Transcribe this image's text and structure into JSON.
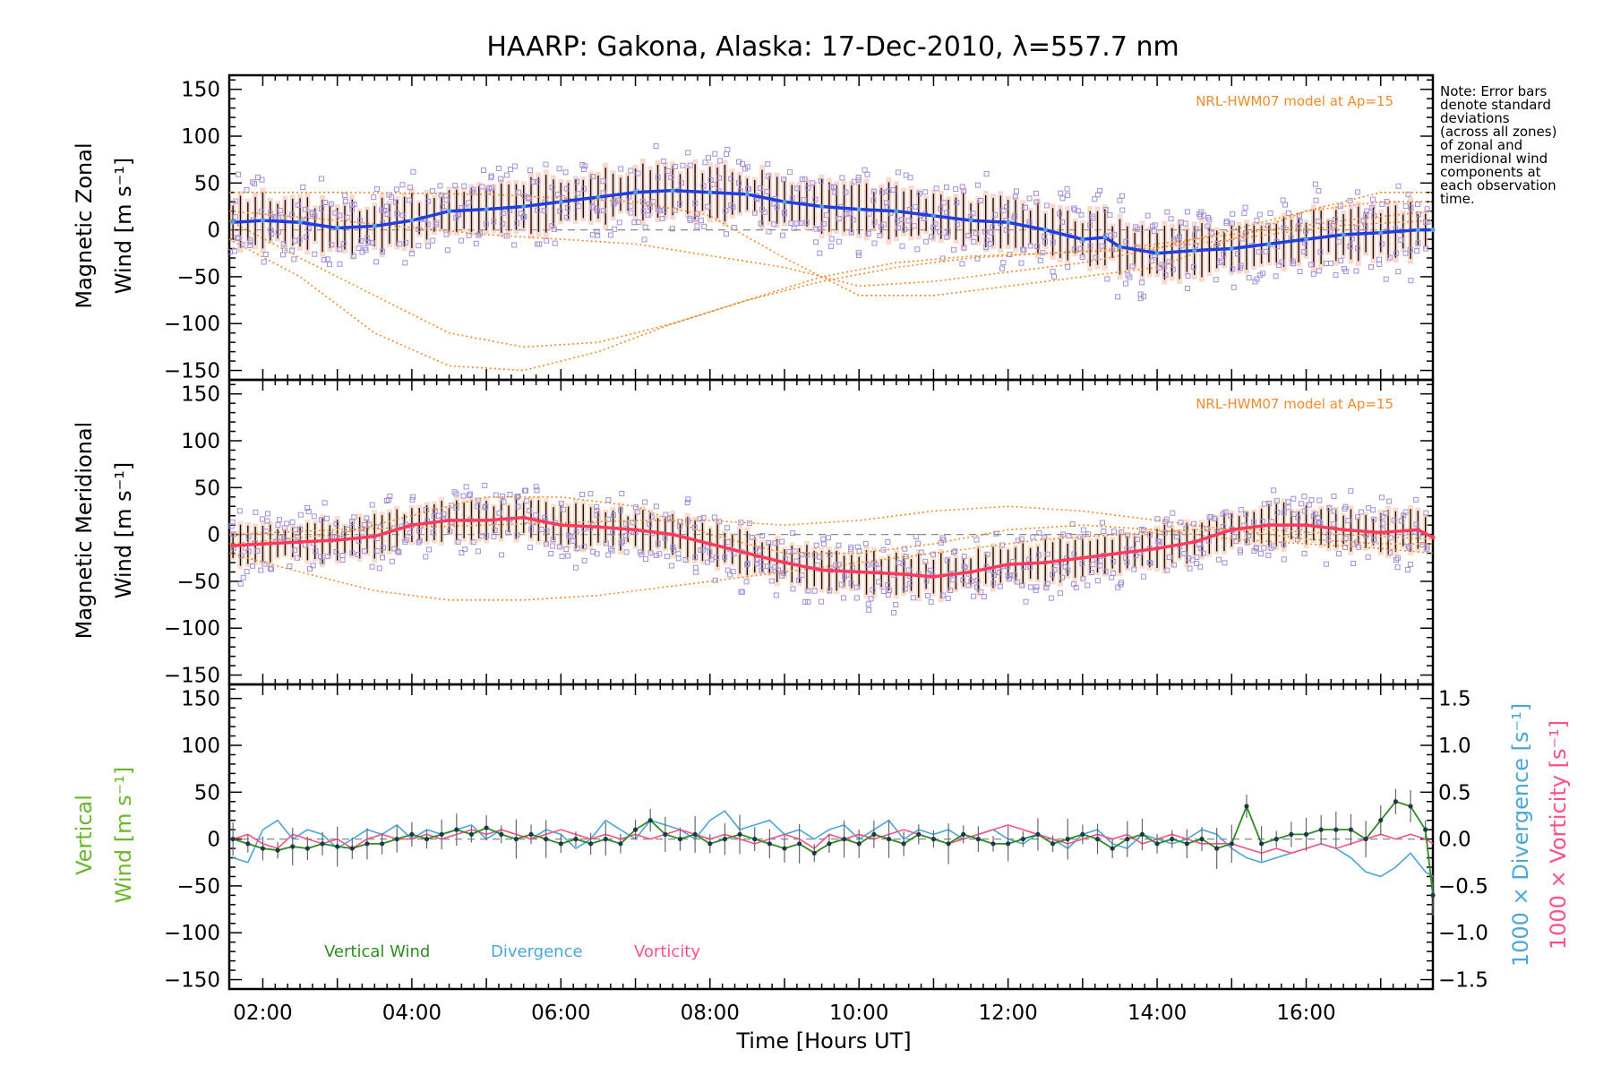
{
  "title": "HAARP: Gakona,  Alaska: 17-Dec-2010, λ=557.7 nm",
  "note": [
    "Note: Error bars",
    "denote standard",
    "deviations",
    "(across all zones)",
    "of zonal and",
    "meridional wind",
    "components at",
    "each observation",
    "time."
  ],
  "colors": {
    "zonal": "#1f3fe0",
    "zonal_light": "#4fa0e0",
    "meridional": "#ff3a5c",
    "vertical": "#2e8b22",
    "vertical_label": "#6ab82a",
    "divergence": "#4aa6d8",
    "vorticity": "#ff4f86",
    "model": "#f08a2c",
    "scatter": "#a08fd8",
    "zonal_bands": "#f4b8a8",
    "meridional_bands": "#f6c0a0"
  },
  "chart_data": [
    {
      "type": "line",
      "panel": "zonal",
      "ylabel": [
        "Magnetic Zonal",
        "Wind [m s⁻¹]"
      ],
      "model_label": "NRL-HWM07 model at Ap=15",
      "ylim": [
        -160,
        165
      ],
      "yticks": [
        "150",
        "100",
        "50",
        "0",
        "−50",
        "−100",
        "−150"
      ],
      "ytick_values": [
        150,
        100,
        50,
        0,
        -50,
        -100,
        -150
      ],
      "xlim": [
        1.55,
        17.7
      ],
      "x": [
        1.6,
        2.0,
        2.5,
        3.0,
        3.5,
        4.0,
        4.5,
        5.0,
        5.5,
        6.0,
        6.5,
        7.0,
        7.5,
        8.0,
        8.5,
        9.0,
        9.5,
        10.0,
        10.5,
        11.0,
        11.5,
        12.0,
        12.5,
        13.0,
        13.3,
        13.5,
        14.0,
        14.5,
        15.0,
        15.5,
        16.0,
        16.5,
        17.0,
        17.5,
        17.7
      ],
      "y": [
        8,
        10,
        8,
        2,
        4,
        10,
        20,
        22,
        25,
        30,
        35,
        40,
        42,
        40,
        38,
        30,
        25,
        22,
        20,
        15,
        10,
        8,
        0,
        -10,
        -8,
        -18,
        -25,
        -22,
        -20,
        -15,
        -10,
        -5,
        -3,
        0,
        0
      ],
      "model_curves": [
        {
          "x": [
            1.55,
            2.5,
            3.5,
            4.5,
            5.5,
            6.5,
            7.5,
            8.5,
            9.5,
            10.5,
            11.5,
            12.5,
            13.5,
            14.5,
            15.5,
            16.5,
            17.7
          ],
          "y": [
            10,
            -30,
            -70,
            -110,
            -125,
            -120,
            -100,
            -75,
            -55,
            -40,
            -30,
            -25,
            -22,
            -15,
            -5,
            5,
            10
          ]
        },
        {
          "x": [
            1.55,
            2.5,
            3.5,
            4.5,
            5.5,
            6.5,
            7.5,
            8.5,
            9.5,
            10.5,
            11.5,
            12.5,
            13.5,
            14.5,
            15.5,
            16.5,
            17.7
          ],
          "y": [
            -10,
            -50,
            -110,
            -145,
            -150,
            -130,
            -100,
            -75,
            -50,
            -35,
            -28,
            -25,
            -20,
            -10,
            0,
            10,
            20
          ]
        },
        {
          "x": [
            1.55,
            3,
            5,
            7,
            8,
            9,
            10,
            11,
            12,
            13,
            14,
            15,
            16,
            17,
            17.7
          ],
          "y": [
            40,
            40,
            38,
            30,
            15,
            -30,
            -70,
            -70,
            -60,
            -50,
            -40,
            -10,
            20,
            40,
            40
          ]
        },
        {
          "x": [
            1.55,
            3,
            5,
            7,
            9,
            10,
            11,
            12,
            13,
            14,
            15,
            16,
            17,
            17.7
          ],
          "y": [
            20,
            10,
            -5,
            -15,
            -40,
            -60,
            -55,
            -45,
            -35,
            -20,
            0,
            20,
            30,
            30
          ]
        }
      ]
    },
    {
      "type": "line",
      "panel": "meridional",
      "ylabel": [
        "Magnetic Meridional",
        "Wind [m s⁻¹]"
      ],
      "model_label": "NRL-HWM07 model at Ap=15",
      "ylim": [
        -160,
        165
      ],
      "yticks": [
        "150",
        "100",
        "50",
        "0",
        "−50",
        "−100",
        "−150"
      ],
      "ytick_values": [
        150,
        100,
        50,
        0,
        -50,
        -100,
        -150
      ],
      "xlim": [
        1.55,
        17.7
      ],
      "x": [
        1.6,
        2.0,
        2.5,
        3.0,
        3.5,
        4.0,
        4.5,
        5.0,
        5.5,
        6.0,
        6.5,
        7.0,
        7.5,
        8.0,
        8.5,
        9.0,
        9.5,
        10.0,
        10.5,
        11.0,
        11.5,
        12.0,
        12.5,
        13.0,
        13.5,
        14.0,
        14.5,
        15.0,
        15.5,
        16.0,
        16.5,
        17.0,
        17.5,
        17.7
      ],
      "y": [
        -12,
        -10,
        -8,
        -6,
        -2,
        10,
        15,
        15,
        18,
        10,
        8,
        5,
        0,
        -10,
        -20,
        -30,
        -38,
        -40,
        -42,
        -45,
        -40,
        -32,
        -30,
        -25,
        -20,
        -15,
        -8,
        5,
        10,
        10,
        5,
        2,
        5,
        -3
      ],
      "model_curves": [
        {
          "x": [
            1.55,
            2.5,
            3.5,
            4.5,
            5.5,
            6.5,
            7.5,
            8.5,
            9.5,
            10.5,
            11.5,
            12.5,
            13.5,
            14.5,
            15.5,
            16.5,
            17.7
          ],
          "y": [
            -20,
            -40,
            -60,
            -70,
            -70,
            -65,
            -55,
            -45,
            -35,
            -25,
            -15,
            -5,
            0,
            5,
            5,
            0,
            -5
          ]
        },
        {
          "x": [
            1.55,
            3,
            4,
            5,
            6,
            7,
            8,
            9,
            10,
            11,
            12,
            13,
            14,
            15,
            16,
            17,
            17.7
          ],
          "y": [
            -10,
            0,
            20,
            40,
            40,
            30,
            0,
            -20,
            -20,
            -10,
            5,
            10,
            5,
            -5,
            -10,
            -15,
            -20
          ]
        },
        {
          "x": [
            1.55,
            3,
            5,
            7,
            8,
            9,
            10,
            11,
            12,
            13,
            14,
            15,
            16,
            17,
            17.7
          ],
          "y": [
            0,
            5,
            10,
            15,
            15,
            10,
            15,
            25,
            30,
            25,
            15,
            5,
            -5,
            -10,
            -10
          ]
        }
      ]
    },
    {
      "type": "line",
      "panel": "vertical",
      "ylabel_left": [
        "Vertical",
        "Wind [m s⁻¹]"
      ],
      "ylabel_right_1": "1000 × Divergence [s⁻¹]",
      "ylabel_right_2": "1000 × Vorticity [s⁻¹]",
      "ylim": [
        -160,
        165
      ],
      "yticks": [
        "150",
        "100",
        "50",
        "0",
        "−50",
        "−100",
        "−150"
      ],
      "ytick_values": [
        150,
        100,
        50,
        0,
        -50,
        -100,
        -150
      ],
      "y2lim": [
        -1.6,
        1.65
      ],
      "y2ticks": [
        "1.5",
        "1.0",
        "0.5",
        "0.0",
        "−0.5",
        "−1.0",
        "−1.5"
      ],
      "y2tick_values": [
        1.5,
        1.0,
        0.5,
        0.0,
        -0.5,
        -1.0,
        -1.5
      ],
      "xlim": [
        1.55,
        17.7
      ],
      "xticks": [
        "02:00",
        "04:00",
        "06:00",
        "08:00",
        "10:00",
        "12:00",
        "14:00",
        "16:00"
      ],
      "xtick_values": [
        2,
        4,
        6,
        8,
        10,
        12,
        14,
        16
      ],
      "xlabel": "Time [Hours UT]",
      "legend": [
        "Vertical Wind",
        "Divergence",
        "Vorticity"
      ],
      "series": [
        {
          "name": "Vertical Wind",
          "x": [
            1.6,
            1.8,
            2.0,
            2.2,
            2.4,
            2.6,
            2.8,
            3.0,
            3.2,
            3.4,
            3.6,
            3.8,
            4.0,
            4.2,
            4.4,
            4.6,
            4.8,
            5.0,
            5.2,
            5.4,
            5.6,
            5.8,
            6.0,
            6.2,
            6.4,
            6.6,
            6.8,
            7.0,
            7.2,
            7.4,
            7.6,
            7.8,
            8.0,
            8.2,
            8.4,
            8.6,
            8.8,
            9.0,
            9.2,
            9.4,
            9.6,
            9.8,
            10.0,
            10.2,
            10.4,
            10.6,
            10.8,
            11.0,
            11.2,
            11.4,
            11.6,
            11.8,
            12.0,
            12.2,
            12.4,
            12.6,
            12.8,
            13.0,
            13.2,
            13.4,
            13.6,
            13.8,
            14.0,
            14.2,
            14.4,
            14.6,
            14.8,
            15.0,
            15.2,
            15.4,
            15.6,
            15.8,
            16.0,
            16.2,
            16.4,
            16.6,
            16.8,
            17.0,
            17.2,
            17.4,
            17.6,
            17.7
          ],
          "y": [
            0,
            -5,
            -10,
            -12,
            -8,
            -10,
            -5,
            -8,
            -10,
            -5,
            -5,
            0,
            5,
            0,
            5,
            10,
            5,
            12,
            5,
            0,
            5,
            0,
            -5,
            0,
            -5,
            0,
            -5,
            10,
            20,
            5,
            0,
            5,
            -5,
            0,
            5,
            0,
            -5,
            -10,
            -5,
            -15,
            -5,
            0,
            -5,
            5,
            0,
            -5,
            5,
            0,
            -5,
            5,
            0,
            -5,
            -5,
            0,
            5,
            -5,
            0,
            5,
            0,
            -10,
            0,
            5,
            -5,
            0,
            -5,
            0,
            -10,
            -5,
            35,
            -5,
            0,
            5,
            5,
            10,
            10,
            10,
            0,
            20,
            40,
            35,
            10,
            -60
          ]
        },
        {
          "name": "Divergence",
          "x": [
            1.6,
            1.8,
            2.0,
            2.2,
            2.4,
            2.6,
            2.8,
            3.0,
            3.2,
            3.4,
            3.6,
            3.8,
            4.0,
            4.2,
            4.4,
            4.6,
            4.8,
            5.0,
            5.2,
            5.4,
            5.6,
            5.8,
            6.0,
            6.2,
            6.4,
            6.6,
            6.8,
            7.0,
            7.2,
            7.4,
            7.6,
            7.8,
            8.0,
            8.2,
            8.4,
            8.6,
            8.8,
            9.0,
            9.2,
            9.4,
            9.6,
            9.8,
            10.0,
            10.2,
            10.4,
            10.6,
            10.8,
            11.0,
            11.2,
            11.4,
            11.6,
            11.8,
            12.0,
            12.2,
            12.4,
            12.6,
            12.8,
            13.0,
            13.2,
            13.4,
            13.6,
            13.8,
            14.0,
            14.2,
            14.4,
            14.6,
            14.8,
            15.0,
            15.2,
            15.4,
            15.6,
            15.8,
            16.0,
            16.2,
            16.4,
            16.6,
            16.8,
            17.0,
            17.2,
            17.4,
            17.6,
            17.7
          ],
          "y": [
            -0.2,
            -0.25,
            0.1,
            0.2,
            0.0,
            0.1,
            0.05,
            -0.1,
            0.0,
            0.1,
            0.05,
            0.15,
            0.0,
            0.1,
            0.05,
            0.1,
            0.15,
            0.0,
            0.1,
            0.05,
            0.0,
            0.1,
            0.05,
            -0.1,
            0.0,
            0.2,
            0.1,
            0.0,
            0.2,
            0.15,
            0.1,
            0.0,
            0.2,
            0.3,
            0.1,
            0.15,
            0.2,
            0.05,
            0.1,
            0.0,
            0.1,
            0.15,
            0.0,
            0.1,
            0.2,
            0.0,
            0.1,
            0.05,
            0.1,
            0.0,
            0.05,
            0.1,
            0.0,
            -0.05,
            0.05,
            0.0,
            -0.1,
            0.05,
            0.1,
            -0.05,
            -0.1,
            0.05,
            0.0,
            -0.05,
            0.0,
            0.1,
            0.05,
            -0.1,
            -0.2,
            -0.25,
            -0.2,
            -0.15,
            -0.1,
            -0.05,
            -0.1,
            -0.2,
            -0.35,
            -0.4,
            -0.3,
            -0.15,
            -0.35,
            -0.4
          ]
        },
        {
          "name": "Vorticity",
          "x": [
            1.6,
            1.8,
            2.0,
            2.2,
            2.4,
            2.6,
            2.8,
            3.0,
            3.2,
            3.4,
            3.6,
            3.8,
            4.0,
            4.2,
            4.4,
            4.6,
            4.8,
            5.0,
            5.2,
            5.4,
            5.6,
            5.8,
            6.0,
            6.2,
            6.4,
            6.6,
            6.8,
            7.0,
            7.2,
            7.4,
            7.6,
            7.8,
            8.0,
            8.2,
            8.4,
            8.6,
            8.8,
            9.0,
            9.2,
            9.4,
            9.6,
            9.8,
            10.0,
            10.2,
            10.4,
            10.6,
            10.8,
            11.0,
            11.2,
            11.4,
            11.6,
            11.8,
            12.0,
            12.2,
            12.4,
            12.6,
            12.8,
            13.0,
            13.2,
            13.4,
            13.6,
            13.8,
            14.0,
            14.2,
            14.4,
            14.6,
            14.8,
            15.0,
            15.2,
            15.4,
            15.6,
            15.8,
            16.0,
            16.2,
            16.4,
            16.6,
            16.8,
            17.0,
            17.2,
            17.4,
            17.6,
            17.7
          ],
          "y": [
            0.0,
            0.05,
            -0.05,
            -0.1,
            0.05,
            0.0,
            -0.05,
            0.0,
            -0.1,
            0.0,
            0.05,
            0.0,
            0.0,
            0.05,
            0.0,
            0.05,
            0.1,
            0.05,
            0.1,
            0.05,
            0.0,
            0.05,
            0.1,
            0.05,
            0.0,
            0.05,
            0.0,
            0.05,
            0.0,
            0.05,
            0.1,
            0.05,
            0.0,
            0.05,
            0.0,
            -0.05,
            0.0,
            0.05,
            0.0,
            -0.1,
            0.05,
            0.0,
            0.05,
            0.0,
            0.05,
            0.1,
            0.05,
            0.0,
            -0.05,
            0.0,
            0.05,
            0.1,
            0.15,
            0.1,
            0.05,
            0.0,
            -0.05,
            0.0,
            0.05,
            0.0,
            0.05,
            -0.05,
            0.0,
            0.05,
            0.0,
            -0.05,
            -0.05,
            -0.05,
            -0.1,
            -0.15,
            -0.1,
            -0.15,
            -0.1,
            -0.05,
            -0.1,
            -0.05,
            0.0,
            0.05,
            0.0,
            0.05,
            0.0,
            -0.05
          ]
        }
      ]
    }
  ]
}
